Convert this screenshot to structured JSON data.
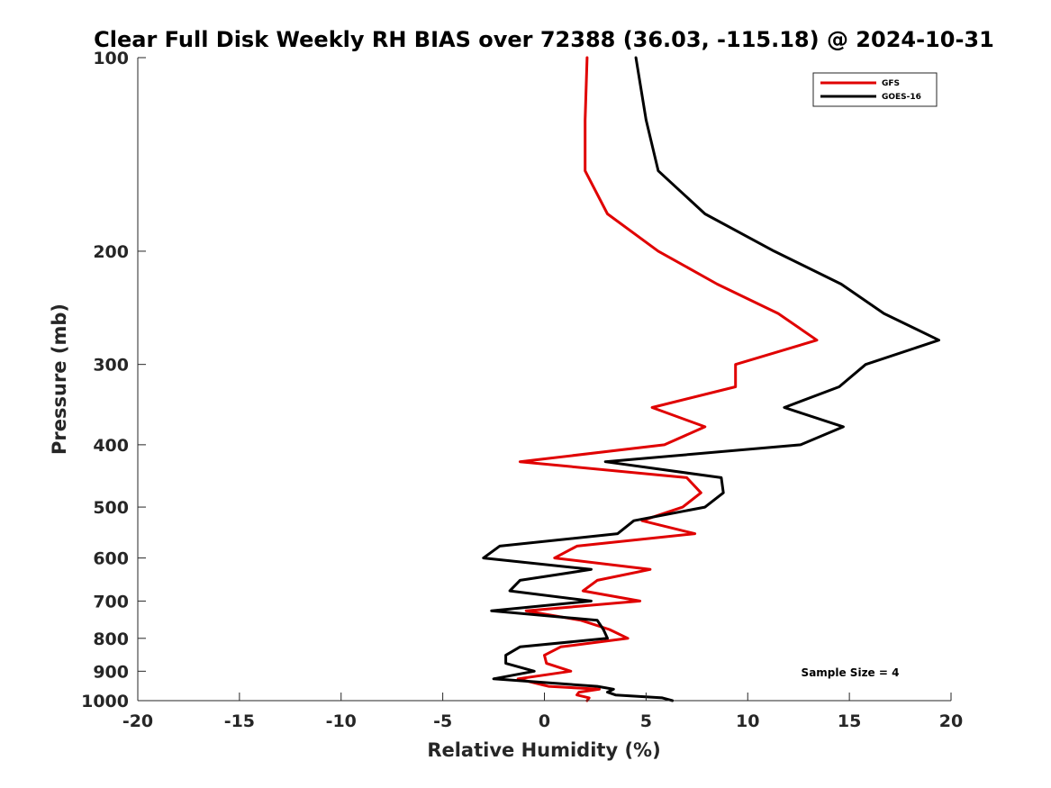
{
  "chart_data": {
    "type": "line",
    "title": "Clear Full Disk Weekly RH BIAS over 72388 (36.03, -115.18) @ 2024-10-31",
    "xlabel": "Relative Humidity (%)",
    "ylabel": "Pressure (mb)",
    "xlim": [
      -20,
      20
    ],
    "ylim": [
      1000,
      100
    ],
    "y_scale": "log",
    "y_reversed": true,
    "x_ticks": [
      -20,
      -15,
      -10,
      -5,
      0,
      5,
      10,
      15,
      20
    ],
    "y_ticks": [
      100,
      200,
      300,
      400,
      500,
      600,
      700,
      800,
      900,
      1000
    ],
    "grid": false,
    "legend_position": "top-right",
    "annotation": "Sample Size = 4",
    "series": [
      {
        "name": "GFS",
        "color": "#e00000",
        "points": [
          {
            "x": 2.1,
            "p": 100
          },
          {
            "x": 2.0,
            "p": 125
          },
          {
            "x": 2.0,
            "p": 150
          },
          {
            "x": 3.1,
            "p": 175
          },
          {
            "x": 5.6,
            "p": 200
          },
          {
            "x": 8.5,
            "p": 225
          },
          {
            "x": 11.5,
            "p": 250
          },
          {
            "x": 13.4,
            "p": 275
          },
          {
            "x": 9.4,
            "p": 300
          },
          {
            "x": 9.4,
            "p": 325
          },
          {
            "x": 5.3,
            "p": 350
          },
          {
            "x": 7.9,
            "p": 375
          },
          {
            "x": 5.9,
            "p": 400
          },
          {
            "x": -1.2,
            "p": 425
          },
          {
            "x": 7.0,
            "p": 450
          },
          {
            "x": 7.7,
            "p": 475
          },
          {
            "x": 6.8,
            "p": 500
          },
          {
            "x": 4.8,
            "p": 525
          },
          {
            "x": 7.4,
            "p": 550
          },
          {
            "x": 1.6,
            "p": 575
          },
          {
            "x": 0.5,
            "p": 600
          },
          {
            "x": 5.2,
            "p": 625
          },
          {
            "x": 2.6,
            "p": 650
          },
          {
            "x": 1.9,
            "p": 675
          },
          {
            "x": 4.7,
            "p": 700
          },
          {
            "x": -0.9,
            "p": 725
          },
          {
            "x": 1.8,
            "p": 750
          },
          {
            "x": 3.2,
            "p": 775
          },
          {
            "x": 4.1,
            "p": 800
          },
          {
            "x": 0.8,
            "p": 825
          },
          {
            "x": 0.0,
            "p": 850
          },
          {
            "x": 0.1,
            "p": 875
          },
          {
            "x": 1.3,
            "p": 900
          },
          {
            "x": -1.3,
            "p": 925
          },
          {
            "x": 0.2,
            "p": 950
          },
          {
            "x": 2.7,
            "p": 960
          },
          {
            "x": 1.7,
            "p": 970
          },
          {
            "x": 1.6,
            "p": 980
          },
          {
            "x": 2.2,
            "p": 990
          },
          {
            "x": 2.1,
            "p": 1000
          }
        ]
      },
      {
        "name": "GOES-16",
        "color": "#000000",
        "points": [
          {
            "x": 4.5,
            "p": 100
          },
          {
            "x": 5.0,
            "p": 125
          },
          {
            "x": 5.6,
            "p": 150
          },
          {
            "x": 7.9,
            "p": 175
          },
          {
            "x": 11.3,
            "p": 200
          },
          {
            "x": 14.6,
            "p": 225
          },
          {
            "x": 16.7,
            "p": 250
          },
          {
            "x": 19.4,
            "p": 275
          },
          {
            "x": 15.8,
            "p": 300
          },
          {
            "x": 14.5,
            "p": 325
          },
          {
            "x": 11.8,
            "p": 350
          },
          {
            "x": 14.7,
            "p": 375
          },
          {
            "x": 12.6,
            "p": 400
          },
          {
            "x": 3.0,
            "p": 425
          },
          {
            "x": 8.7,
            "p": 450
          },
          {
            "x": 8.8,
            "p": 475
          },
          {
            "x": 7.9,
            "p": 500
          },
          {
            "x": 4.4,
            "p": 525
          },
          {
            "x": 3.6,
            "p": 550
          },
          {
            "x": -2.2,
            "p": 575
          },
          {
            "x": -3.0,
            "p": 600
          },
          {
            "x": 2.3,
            "p": 625
          },
          {
            "x": -1.2,
            "p": 650
          },
          {
            "x": -1.7,
            "p": 675
          },
          {
            "x": 2.3,
            "p": 700
          },
          {
            "x": -2.6,
            "p": 725
          },
          {
            "x": 2.6,
            "p": 750
          },
          {
            "x": 2.9,
            "p": 775
          },
          {
            "x": 3.1,
            "p": 800
          },
          {
            "x": -1.2,
            "p": 825
          },
          {
            "x": -1.9,
            "p": 850
          },
          {
            "x": -1.9,
            "p": 875
          },
          {
            "x": -0.5,
            "p": 900
          },
          {
            "x": -2.5,
            "p": 925
          },
          {
            "x": 2.6,
            "p": 950
          },
          {
            "x": 3.4,
            "p": 960
          },
          {
            "x": 3.1,
            "p": 970
          },
          {
            "x": 3.5,
            "p": 980
          },
          {
            "x": 5.8,
            "p": 990
          },
          {
            "x": 6.3,
            "p": 1000
          }
        ]
      }
    ]
  }
}
